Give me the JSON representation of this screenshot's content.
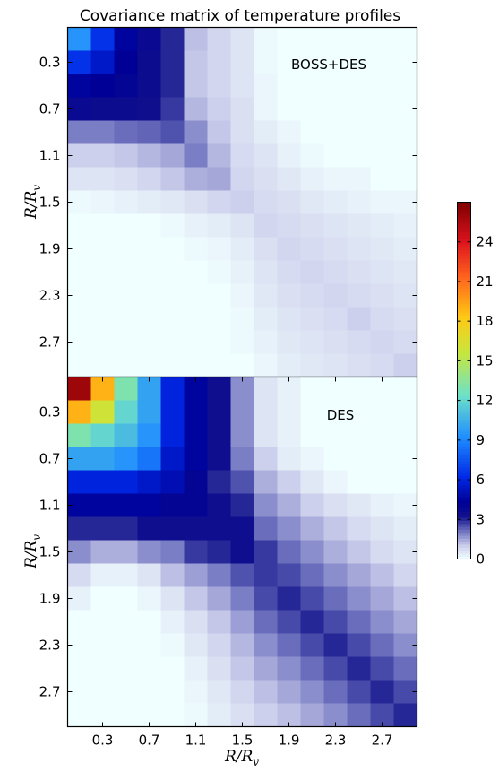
{
  "title": "Covariance matrix of temperature profiles",
  "chart_data": [
    {
      "type": "heatmap",
      "panel": "top",
      "annotation": "BOSS+DES",
      "ylabel_main": "R/R",
      "ylabel_sub": "v",
      "yticks": [
        "0.3",
        "0.7",
        "1.1",
        "1.5",
        "1.9",
        "2.3",
        "2.7"
      ],
      "tick_positions": [
        0.3,
        0.7,
        1.1,
        1.5,
        1.9,
        2.3,
        2.7
      ],
      "range": [
        0,
        3.0
      ],
      "n": 15,
      "values": [
        [
          9.5,
          6.5,
          4.5,
          3.8,
          3.0,
          1.2,
          0.9,
          0.6,
          0.1,
          0,
          0,
          0,
          0,
          0,
          0
        ],
        [
          6.5,
          5.5,
          4.3,
          3.6,
          3.0,
          1.1,
          0.9,
          0.6,
          0.1,
          0,
          0,
          0,
          0,
          0,
          0
        ],
        [
          4.5,
          4.3,
          4.0,
          3.6,
          3.0,
          1.1,
          0.9,
          0.6,
          0.2,
          0,
          0,
          0,
          0,
          0,
          0
        ],
        [
          3.8,
          3.6,
          3.6,
          3.4,
          2.8,
          1.3,
          1.0,
          0.7,
          0.2,
          0,
          0,
          0,
          0,
          0,
          0
        ],
        [
          2.0,
          2.0,
          2.2,
          2.3,
          2.5,
          1.8,
          1.1,
          0.7,
          0.4,
          0.2,
          0,
          0,
          0,
          0,
          0
        ],
        [
          1.0,
          1.0,
          1.1,
          1.3,
          1.5,
          2.0,
          1.3,
          0.8,
          0.6,
          0.3,
          0.1,
          0,
          0,
          0,
          0
        ],
        [
          0.6,
          0.6,
          0.7,
          0.9,
          1.1,
          1.4,
          1.5,
          0.9,
          0.7,
          0.5,
          0.3,
          0.2,
          0.2,
          0,
          0
        ],
        [
          0.1,
          0.2,
          0.3,
          0.4,
          0.5,
          0.7,
          0.9,
          1.0,
          0.8,
          0.7,
          0.5,
          0.4,
          0.3,
          0.2,
          0.2
        ],
        [
          0,
          0,
          0,
          0,
          0.1,
          0.3,
          0.4,
          0.6,
          0.9,
          0.8,
          0.7,
          0.6,
          0.5,
          0.4,
          0.3
        ],
        [
          0,
          0,
          0,
          0,
          0,
          0.1,
          0.2,
          0.4,
          0.7,
          0.9,
          0.8,
          0.7,
          0.6,
          0.5,
          0.4
        ],
        [
          0,
          0,
          0,
          0,
          0,
          0,
          0.1,
          0.3,
          0.6,
          0.8,
          0.9,
          0.8,
          0.7,
          0.6,
          0.5
        ],
        [
          0,
          0,
          0,
          0,
          0,
          0,
          0,
          0.2,
          0.5,
          0.7,
          0.8,
          0.9,
          0.8,
          0.7,
          0.6
        ],
        [
          0,
          0,
          0,
          0,
          0,
          0,
          0,
          0.1,
          0.4,
          0.6,
          0.7,
          0.8,
          1.0,
          0.8,
          0.7
        ],
        [
          0,
          0,
          0,
          0,
          0,
          0,
          0,
          0.1,
          0.3,
          0.5,
          0.6,
          0.7,
          0.8,
          0.9,
          0.8
        ],
        [
          0,
          0,
          0,
          0,
          0,
          0,
          0,
          0,
          0.2,
          0.4,
          0.5,
          0.6,
          0.7,
          0.8,
          1.0
        ]
      ]
    },
    {
      "type": "heatmap",
      "panel": "bottom",
      "annotation": "DES",
      "ylabel_main": "R/R",
      "ylabel_sub": "v",
      "xlabel_main": "R/R",
      "xlabel_sub": "v",
      "xticks": [
        "0.3",
        "0.7",
        "1.1",
        "1.5",
        "1.9",
        "2.3",
        "2.7"
      ],
      "yticks": [
        "0.3",
        "0.7",
        "1.1",
        "1.5",
        "1.9",
        "2.3",
        "2.7"
      ],
      "tick_positions": [
        0.3,
        0.7,
        1.1,
        1.5,
        1.9,
        2.3,
        2.7
      ],
      "range": [
        0,
        3.0
      ],
      "n": 15,
      "values": [
        [
          26,
          19,
          13,
          10,
          6.0,
          4.5,
          3.5,
          1.8,
          0.6,
          0.3,
          0,
          0,
          0,
          0,
          0
        ],
        [
          19,
          16,
          12,
          10,
          6.0,
          4.5,
          3.5,
          1.8,
          0.6,
          0.3,
          0,
          0,
          0,
          0,
          0
        ],
        [
          13,
          12,
          11,
          9.5,
          6.0,
          4.5,
          3.5,
          1.8,
          0.6,
          0.3,
          0,
          0,
          0,
          0,
          0
        ],
        [
          10,
          10,
          9.5,
          8.5,
          5.5,
          4.5,
          3.5,
          2.0,
          1.0,
          0.4,
          0.2,
          0,
          0,
          0,
          0
        ],
        [
          6.0,
          6.0,
          6.0,
          5.5,
          5.0,
          4.0,
          3.0,
          2.5,
          1.4,
          1.0,
          0.5,
          0.2,
          0,
          0,
          0
        ],
        [
          4.5,
          4.5,
          4.5,
          4.5,
          4.0,
          4.0,
          3.5,
          3.0,
          1.8,
          1.4,
          1.0,
          0.7,
          0.5,
          0.3,
          0.2
        ],
        [
          3.0,
          3.0,
          3.0,
          3.5,
          3.5,
          3.5,
          3.5,
          3.5,
          2.2,
          1.8,
          1.4,
          1.1,
          0.8,
          0.6,
          0.4
        ],
        [
          1.8,
          1.4,
          1.4,
          1.8,
          2.0,
          2.8,
          3.0,
          3.5,
          2.8,
          2.2,
          1.8,
          1.4,
          1.1,
          0.8,
          0.6
        ],
        [
          0.8,
          0.3,
          0.3,
          0.6,
          1.2,
          1.6,
          2.0,
          2.5,
          2.8,
          2.6,
          2.2,
          1.8,
          1.5,
          1.2,
          0.9
        ],
        [
          0.3,
          0,
          0,
          0.2,
          0.6,
          1.1,
          1.5,
          2.0,
          2.6,
          3.0,
          2.6,
          2.2,
          1.8,
          1.5,
          1.2
        ],
        [
          0,
          0,
          0,
          0,
          0.3,
          0.7,
          1.1,
          1.6,
          2.2,
          2.6,
          3.0,
          2.6,
          2.2,
          1.8,
          1.5
        ],
        [
          0,
          0,
          0,
          0,
          0.1,
          0.5,
          0.9,
          1.3,
          1.8,
          2.2,
          2.6,
          3.0,
          2.6,
          2.2,
          1.8
        ],
        [
          0,
          0,
          0,
          0,
          0,
          0.3,
          0.7,
          1.1,
          1.5,
          1.8,
          2.2,
          2.6,
          3.0,
          2.6,
          2.2
        ],
        [
          0,
          0,
          0,
          0,
          0,
          0.2,
          0.5,
          0.9,
          1.2,
          1.5,
          1.8,
          2.2,
          2.6,
          3.0,
          2.6
        ],
        [
          0,
          0,
          0,
          0,
          0,
          0.1,
          0.4,
          0.7,
          1.0,
          1.2,
          1.5,
          1.8,
          2.2,
          2.6,
          3.0
        ]
      ]
    }
  ],
  "colorbar": {
    "min": 0,
    "max": 27,
    "ticks": [
      "0",
      "3",
      "6",
      "9",
      "12",
      "15",
      "18",
      "21",
      "24"
    ],
    "tick_values": [
      0,
      3,
      6,
      9,
      12,
      15,
      18,
      21,
      24
    ],
    "colormap": "white-blue-cyan-yellow-red"
  }
}
